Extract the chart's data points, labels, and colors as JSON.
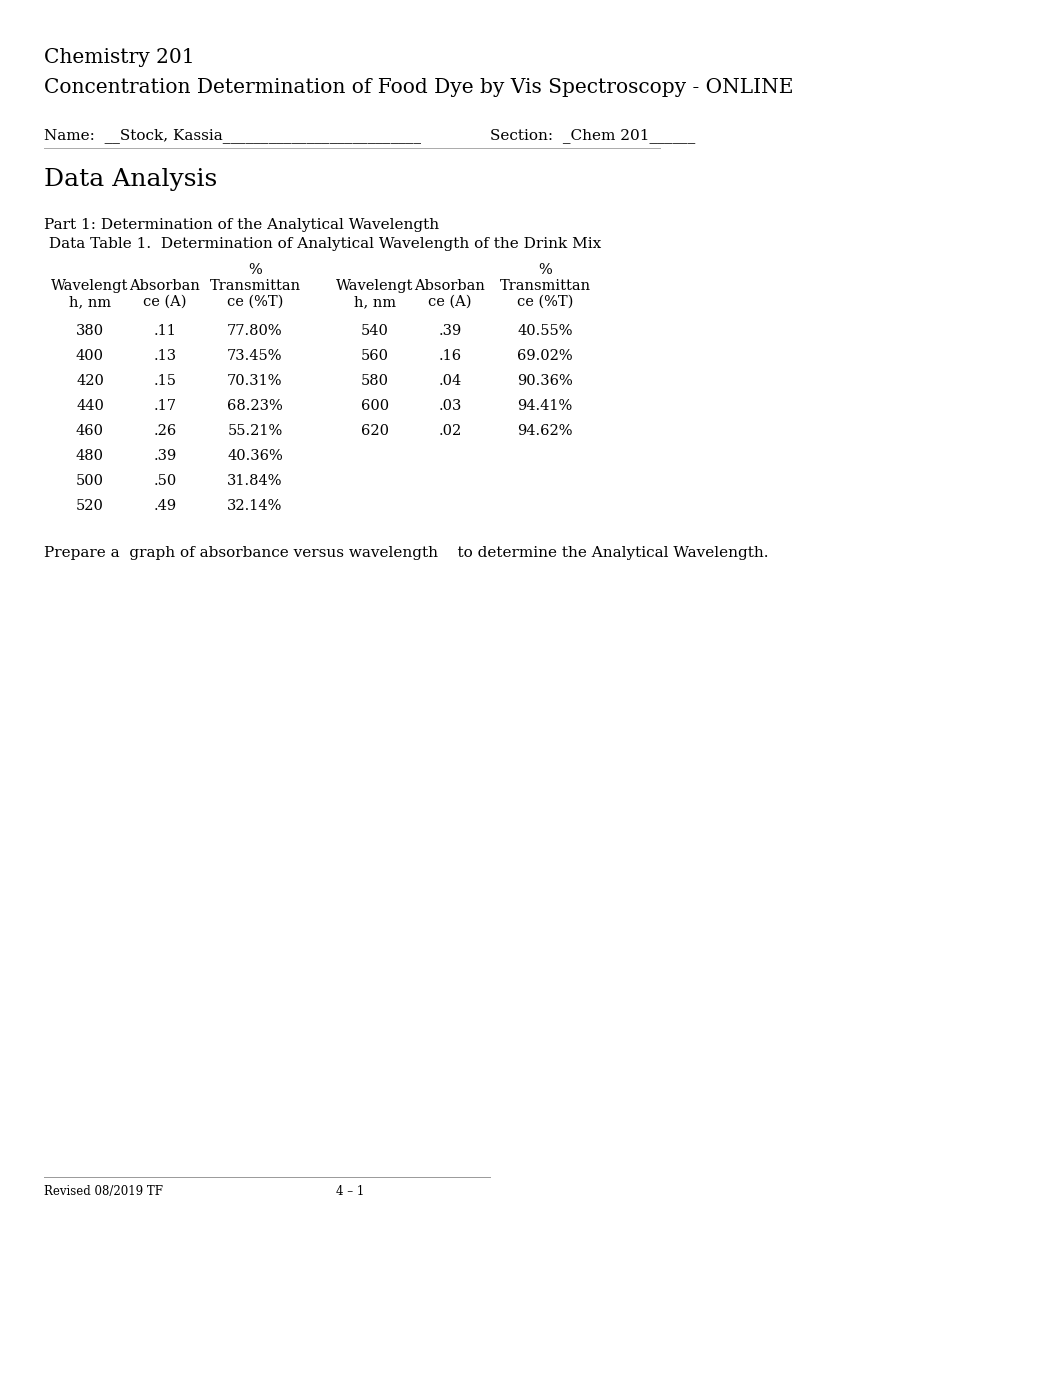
{
  "title_line1": "Chemistry 201",
  "title_line2": "Concentration Determination of Food Dye by Vis Spectroscopy - ONLINE",
  "name_label": "Name:  __Stock, Kassia__________________________",
  "section_label": "Section:  _Chem 201______",
  "section_heading": "Data Analysis",
  "part1_heading": "Part 1: Determination of the Analytical Wavelength",
  "table_title": " Data Table 1.  Determination of Analytical Wavelength of the Drink Mix",
  "col_headers_line1": [
    "%",
    "",
    "",
    "%",
    "",
    ""
  ],
  "col_headers_line2": [
    "Wavelengt",
    "Absorban",
    "Transmittan",
    "Wavelengt",
    "Absorban",
    "Transmittan"
  ],
  "col_headers_line3": [
    "h, nm",
    "ce (A)",
    "ce (%T)",
    "h, nm",
    "ce (A)",
    "ce (%T)"
  ],
  "col_has_pct": [
    false,
    false,
    true,
    false,
    false,
    true
  ],
  "left_data": [
    [
      "380",
      ".11",
      "77.80%"
    ],
    [
      "400",
      ".13",
      "73.45%"
    ],
    [
      "420",
      ".15",
      "70.31%"
    ],
    [
      "440",
      ".17",
      "68.23%"
    ],
    [
      "460",
      ".26",
      "55.21%"
    ],
    [
      "480",
      ".39",
      "40.36%"
    ],
    [
      "500",
      ".50",
      "31.84%"
    ],
    [
      "520",
      ".49",
      "32.14%"
    ]
  ],
  "right_data": [
    [
      "540",
      ".39",
      "40.55%"
    ],
    [
      "560",
      ".16",
      "69.02%"
    ],
    [
      "580",
      ".04",
      "90.36%"
    ],
    [
      "600",
      ".03",
      "94.41%"
    ],
    [
      "620",
      ".02",
      "94.62%"
    ]
  ],
  "prepare_text": "Prepare a  graph of absorbance versus wavelength    to determine the Analytical Wavelength.",
  "footer_left": "Revised 08/2019 TF",
  "footer_center": "4 – 1",
  "bg_color": "#ffffff",
  "text_color": "#000000",
  "font_family": "DejaVu Serif",
  "title_fs": 14.5,
  "body_fs": 11.0,
  "table_fs": 10.5,
  "small_fs": 8.5,
  "heading_fs": 18.0
}
